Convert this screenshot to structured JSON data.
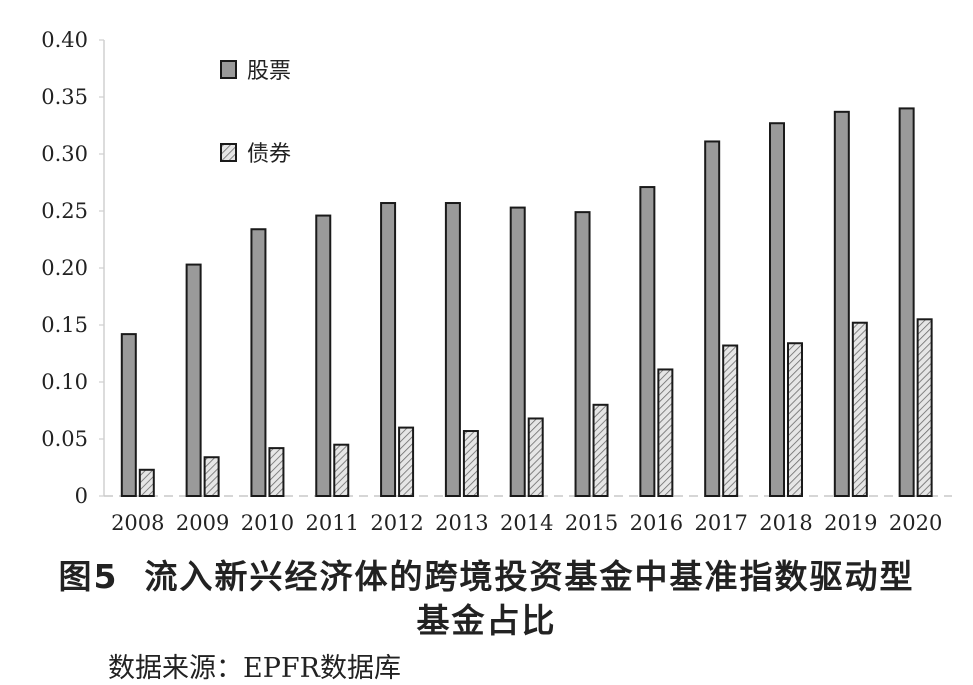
{
  "chart_data": {
    "type": "bar",
    "categories": [
      "2008",
      "2009",
      "2010",
      "2011",
      "2012",
      "2013",
      "2014",
      "2015",
      "2016",
      "2017",
      "2018",
      "2019",
      "2020"
    ],
    "series": [
      {
        "name": "股票",
        "pattern": "solid-gray",
        "color": "#9a9a9a",
        "values": [
          0.142,
          0.203,
          0.234,
          0.246,
          0.257,
          0.257,
          0.253,
          0.249,
          0.271,
          0.311,
          0.327,
          0.337,
          0.34
        ]
      },
      {
        "name": "债券",
        "pattern": "diagonal-hatch",
        "color": "#d6d6d6",
        "values": [
          0.023,
          0.034,
          0.042,
          0.045,
          0.06,
          0.057,
          0.068,
          0.08,
          0.111,
          0.132,
          0.134,
          0.152,
          0.155
        ]
      }
    ],
    "y_ticks": [
      "0",
      "0.05",
      "0.10",
      "0.15",
      "0.20",
      "0.25",
      "0.30",
      "0.35",
      "0.40"
    ],
    "ylim": [
      0,
      0.4
    ],
    "grid": false,
    "legend_position": "top-left inside plot, stacked vertically",
    "title": "",
    "xlabel": "",
    "ylabel": ""
  },
  "caption": {
    "figure_number": "图5",
    "title_line1": "流入新兴经济体的跨境投资基金中基准指数驱动型",
    "title_line2": "基金占比"
  },
  "source_note": "数据来源：EPFR数据库"
}
